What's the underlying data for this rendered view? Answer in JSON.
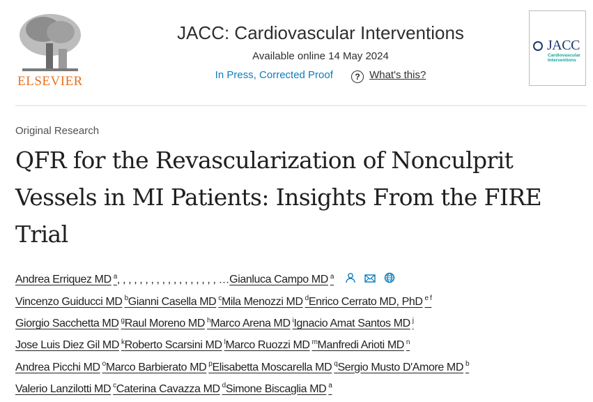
{
  "publisher": {
    "name": "ELSEVIER"
  },
  "header": {
    "journal": "JACC: Cardiovascular Interventions",
    "available": "Available online 14 May 2024",
    "status_link": "In Press, Corrected Proof",
    "help_link": "What's this?"
  },
  "cover": {
    "title": "JACC",
    "subtitle_line1": "Cardiovascular",
    "subtitle_line2": "Interventions"
  },
  "article": {
    "type": "Original Research",
    "title": "QFR for the Revascularization of Nonculprit Vessels in MI Patients: Insights From the FIRE Trial"
  },
  "first_row": {
    "first_author": {
      "name": "Andrea Erriquez MD",
      "sup": "a"
    },
    "ellipsis": ", , , , , , , , , , , , , , , , , , …",
    "last_author": {
      "name": "Gianluca Campo MD",
      "sup": "a"
    }
  },
  "author_rows": [
    [
      {
        "name": "Vincenzo Guiducci MD",
        "sup": "b"
      },
      {
        "name": "Gianni Casella MD",
        "sup": "c"
      },
      {
        "name": "Mila Menozzi MD",
        "sup": "d"
      },
      {
        "name": "Enrico Cerrato MD, PhD",
        "sup": "e f"
      }
    ],
    [
      {
        "name": "Giorgio Sacchetta MD",
        "sup": "g"
      },
      {
        "name": "Raul Moreno MD",
        "sup": "h"
      },
      {
        "name": "Marco Arena MD",
        "sup": "i"
      },
      {
        "name": "Ignacio Amat Santos MD",
        "sup": "j"
      }
    ],
    [
      {
        "name": "Jose Luis Diez Gil MD",
        "sup": "k"
      },
      {
        "name": "Roberto Scarsini MD",
        "sup": "l"
      },
      {
        "name": "Marco Ruozzi MD",
        "sup": "m"
      },
      {
        "name": "Manfredi Arioti MD",
        "sup": "n"
      }
    ],
    [
      {
        "name": "Andrea Picchi MD",
        "sup": "o"
      },
      {
        "name": "Marco Barbierato MD",
        "sup": "p"
      },
      {
        "name": "Elisabetta Moscarella MD",
        "sup": "q"
      },
      {
        "name": "Sergio Musto D'Amore MD",
        "sup": "b"
      }
    ],
    [
      {
        "name": "Valerio Lanzilotti MD",
        "sup": "c"
      },
      {
        "name": "Caterina Cavazza MD",
        "sup": "d"
      },
      {
        "name": "Simone Biscaglia MD",
        "sup": "a"
      }
    ]
  ],
  "colors": {
    "link": "#0c7dbb",
    "elsevier": "#e9711c",
    "jacc": "#1d3a6b",
    "teal": "#16a39a"
  }
}
